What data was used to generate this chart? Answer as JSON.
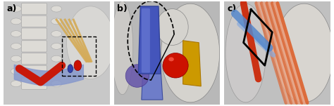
{
  "panels": [
    "a)",
    "b)",
    "c)"
  ],
  "label_fontsize": 9,
  "label_color": "black",
  "bg_color": "white",
  "figsize": [
    4.74,
    1.51
  ],
  "dpi": 100,
  "panel_a": {
    "bg": "#c8c8c8",
    "bone_light": "#dddbd6",
    "bone_edge": "#aaaaaa",
    "red_vessel": "#cc1100",
    "blue_vessel": "#3344aa",
    "blue_light": "#8899cc",
    "nerve_yellow": "#d4aa55",
    "dashed_color": "black"
  },
  "panel_b": {
    "bg": "#b8b8b8",
    "bone_light": "#d5d3ce",
    "blue_tube": "#4455bb",
    "blue_mid": "#6677cc",
    "blue_dark": "#334499",
    "purple": "#6655aa",
    "red_sphere": "#cc1100",
    "gold": "#cc9900",
    "dashed_color": "black"
  },
  "panel_c": {
    "bg": "#c0c0c0",
    "bone_light": "#d8d5d0",
    "blue_vessel": "#5588cc",
    "red_muscle": "#cc2200",
    "orange_muscle": "#dd6633",
    "muscle_light": "#e8a080",
    "black_outline": "black"
  }
}
